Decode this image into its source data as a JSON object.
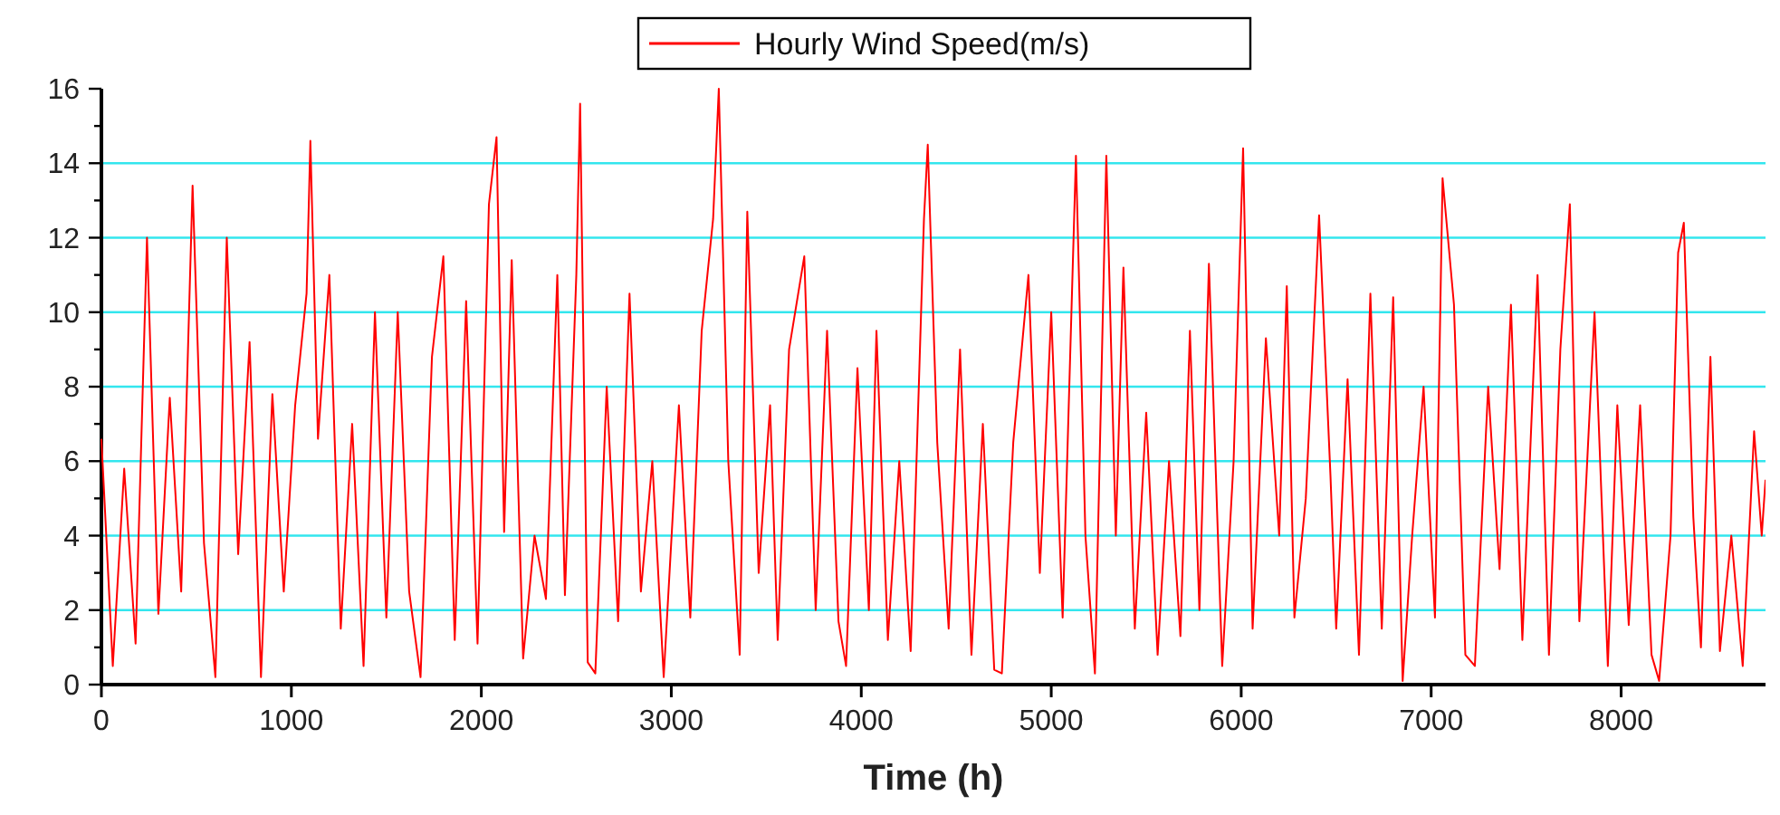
{
  "chart_data": {
    "type": "line",
    "xlabel": "Time (h)",
    "legend": "top",
    "grid": "y",
    "line_style": "solid",
    "marker": "none",
    "xlim": [
      0,
      8760
    ],
    "xticks": [
      0,
      1000,
      2000,
      3000,
      4000,
      5000,
      6000,
      7000,
      8000
    ],
    "ylim": [
      0,
      16
    ],
    "yticks": [
      0,
      {
        "value": 1,
        "label": null
      },
      2,
      {
        "value": 3,
        "label": null
      },
      4,
      {
        "value": 5,
        "label": null
      },
      6,
      {
        "value": 7,
        "label": null
      },
      8,
      {
        "value": 9,
        "label": null
      },
      10,
      {
        "value": 11,
        "label": null
      },
      12,
      {
        "value": 13,
        "label": null
      },
      14,
      {
        "value": 15,
        "label": null
      },
      16
    ],
    "x": [
      0,
      60,
      120,
      180,
      240,
      300,
      360,
      420,
      480,
      540,
      600,
      660,
      720,
      780,
      840,
      900,
      960,
      1020,
      1080,
      1100,
      1140,
      1200,
      1260,
      1320,
      1380,
      1440,
      1500,
      1560,
      1620,
      1680,
      1740,
      1800,
      1860,
      1920,
      1980,
      2040,
      2080,
      2120,
      2160,
      2220,
      2280,
      2340,
      2400,
      2440,
      2500,
      2520,
      2560,
      2600,
      2660,
      2720,
      2780,
      2840,
      2900,
      2960,
      3040,
      3100,
      3160,
      3220,
      3250,
      3300,
      3360,
      3400,
      3460,
      3520,
      3560,
      3620,
      3700,
      3760,
      3820,
      3880,
      3920,
      3980,
      4040,
      4080,
      4140,
      4200,
      4260,
      4330,
      4350,
      4400,
      4460,
      4520,
      4580,
      4640,
      4700,
      4740,
      4800,
      4880,
      4940,
      5000,
      5060,
      5130,
      5180,
      5230,
      5290,
      5340,
      5380,
      5440,
      5500,
      5560,
      5620,
      5680,
      5730,
      5780,
      5830,
      5900,
      5960,
      6010,
      6060,
      6130,
      6200,
      6240,
      6280,
      6340,
      6410,
      6470,
      6500,
      6560,
      6620,
      6680,
      6740,
      6800,
      6850,
      6900,
      6960,
      7020,
      7060,
      7120,
      7180,
      7230,
      7300,
      7360,
      7420,
      7480,
      7560,
      7620,
      7680,
      7730,
      7780,
      7860,
      7930,
      7980,
      8040,
      8100,
      8160,
      8200,
      8260,
      8300,
      8330,
      8380,
      8420,
      8470,
      8520,
      8580,
      8640,
      8700,
      8740,
      8760
    ],
    "series": [
      {
        "name": "Hourly Wind Speed(m/s)",
        "color": "#ff0000",
        "values": [
          6.6,
          0.5,
          5.8,
          1.1,
          12,
          1.9,
          7.7,
          2.5,
          13.4,
          3.8,
          0.2,
          12,
          3.5,
          9.2,
          0.2,
          7.8,
          2.5,
          7.5,
          10.5,
          14.6,
          6.6,
          11,
          1.5,
          7,
          0.5,
          10,
          1.8,
          10,
          2.5,
          0.2,
          8.8,
          11.5,
          1.2,
          10.3,
          1.1,
          12.9,
          14.7,
          4.1,
          11.4,
          0.7,
          4,
          2.3,
          11,
          2.4,
          11,
          15.6,
          0.6,
          0.3,
          8,
          1.7,
          10.5,
          2.5,
          6,
          0.2,
          7.5,
          1.8,
          9.5,
          12.5,
          16,
          6,
          0.8,
          12.7,
          3,
          7.5,
          1.2,
          9,
          11.5,
          2,
          9.5,
          1.7,
          0.5,
          8.5,
          2,
          9.5,
          1.2,
          6,
          0.9,
          12.5,
          14.5,
          6.5,
          1.5,
          9,
          0.8,
          7,
          0.4,
          0.3,
          6.5,
          11,
          3,
          10,
          1.8,
          14.2,
          4,
          0.3,
          14.2,
          4,
          11.2,
          1.5,
          7.3,
          0.8,
          6,
          1.3,
          9.5,
          2,
          11.3,
          0.5,
          6,
          14.4,
          1.5,
          9.3,
          4,
          10.7,
          1.8,
          5,
          12.6,
          5.6,
          1.5,
          8.2,
          0.8,
          10.5,
          1.5,
          10.4,
          0.1,
          4,
          8,
          1.8,
          13.6,
          10.2,
          0.8,
          0.5,
          8,
          3.1,
          10.2,
          1.2,
          11,
          0.8,
          9,
          12.9,
          1.7,
          10,
          0.5,
          7.5,
          1.6,
          7.5,
          0.8,
          0.1,
          4,
          11.6,
          12.4,
          4.5,
          1,
          8.8,
          0.9,
          4,
          0.5,
          6.8,
          4,
          5.5
        ]
      }
    ]
  }
}
